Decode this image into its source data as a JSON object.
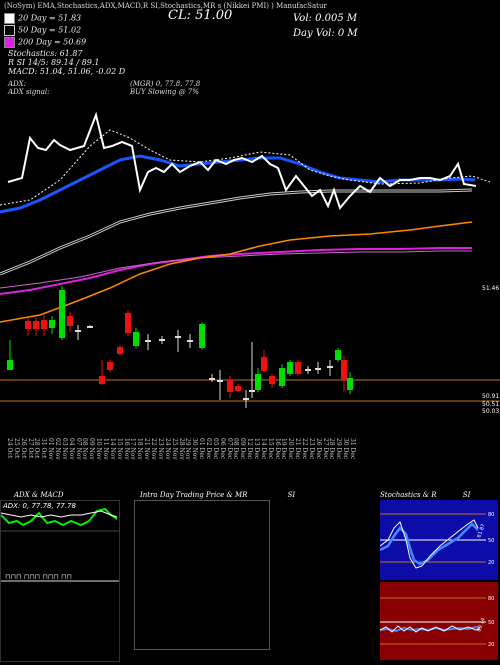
{
  "header": {
    "line1": "(NoSym) EMA,Stochastics,ADX,MACD,R          SI,Stochastics,MR          s (Nikkei PMI)          ) ManufacSatur",
    "title": "CL: 51.00",
    "vol_label": "Vol: 0.005 M",
    "day_vol_label": "Day Vol: 0   M"
  },
  "legend": {
    "items": [
      {
        "label": "20  Day = 51.83",
        "color": "#ffffff"
      },
      {
        "label": "50  Day = 51.02",
        "color": "#000000"
      },
      {
        "label": "200  Day = 50.69",
        "color": "#e020e0"
      }
    ],
    "lines": [
      "Stochastics: 61.87",
      "R                  SI 14/5: 89.14 / 89.1",
      "MACD: 51.04,  51.06,  -0.02  D"
    ]
  },
  "adx": {
    "label": "ADX:",
    "signal_label": "ADX  signal:",
    "values": "(MGR) 0,  77.8,  77.8",
    "signal_text": "BUY Slowing @ 7%"
  },
  "price_axis": {
    "labels": [
      "51.46",
      "50.91",
      "50.51",
      "50.03"
    ],
    "colors": {
      "bg": "#000000",
      "bull": "#00dd00",
      "bear": "#ee1111",
      "ema_fast": "#ffffff",
      "ema_blue": "#1a56ff",
      "ema_slow": "#bbbbbb",
      "ema_orange": "#ff8800",
      "ema_magenta": "#dd22dd"
    }
  },
  "dates": [
    "24 Oct",
    "25 Oct",
    "26 Oct",
    "27 Oct",
    "28 Oct",
    "31 Oct",
    "01 Nov",
    "02 Nov",
    "03 Nov",
    "04 Nov",
    "07 Nov",
    "08 Nov",
    "09 Nov",
    "10 Nov",
    "11 Nov",
    "14 Nov",
    "15 Nov",
    "16 Nov",
    "17 Nov",
    "18 Nov",
    "21 Nov",
    "22 Nov",
    "23 Nov",
    "24 Nov",
    "25 Nov",
    "28 Nov",
    "29 Nov",
    "30 Nov",
    "01 Dec",
    "02 Dec",
    "05 Dec",
    "06 Dec",
    "07 Dec",
    "08 Dec",
    "09 Dec",
    "12 Dec",
    "13 Dec",
    "14 Dec",
    "15 Dec",
    "16 Dec",
    "19 Dec",
    "20 Dec",
    "21 Dec",
    "22 Dec",
    "23 Dec",
    "26 Dec",
    "27 Dec",
    "28 Dec",
    "29 Dec",
    "30 Dec",
    "31 Dec"
  ],
  "bottom_panels": {
    "adx_panel": {
      "title": "ADX  & MACD",
      "values": "ADX: 0,  77.78,  77.78"
    },
    "intraday_panel": {
      "title": "Intra  Day Trading Price  & MR",
      "suffix": "SI"
    },
    "stoch_panel": {
      "title": "Stochastics  & R",
      "suffix": "SI",
      "ticks": [
        "80",
        "50",
        "20"
      ],
      "rsi_ticks": [
        "80",
        "50",
        "20"
      ],
      "rsi_val": "89.14",
      "stoch_val": "61.87"
    }
  }
}
